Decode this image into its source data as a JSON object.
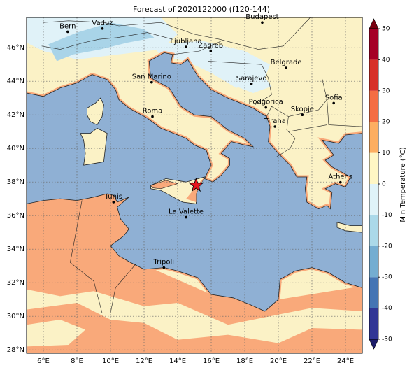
{
  "title": "Forecast of 2020122000 (f120-144)",
  "map": {
    "lonlim": [
      5,
      25
    ],
    "latlim": [
      27.8,
      47.8
    ],
    "lonticks": [
      {
        "value": 6,
        "label": "6°E"
      },
      {
        "value": 8,
        "label": "8°E"
      },
      {
        "value": 10,
        "label": "10°E"
      },
      {
        "value": 12,
        "label": "12°E"
      },
      {
        "value": 14,
        "label": "14°E"
      },
      {
        "value": 16,
        "label": "16°E"
      },
      {
        "value": 18,
        "label": "18°E"
      },
      {
        "value": 20,
        "label": "20°E"
      },
      {
        "value": 22,
        "label": "22°E"
      },
      {
        "value": 24,
        "label": "24°E"
      }
    ],
    "latticks": [
      {
        "value": 28,
        "label": "28°N"
      },
      {
        "value": 30,
        "label": "30°N"
      },
      {
        "value": 32,
        "label": "32°N"
      },
      {
        "value": 34,
        "label": "34°N"
      },
      {
        "value": 36,
        "label": "36°N"
      },
      {
        "value": 38,
        "label": "38°N"
      },
      {
        "value": 40,
        "label": "40°N"
      },
      {
        "value": 42,
        "label": "42°N"
      },
      {
        "value": 44,
        "label": "44°N"
      },
      {
        "value": 46,
        "label": "46°N"
      }
    ],
    "grid": true
  },
  "cities": [
    "Bern",
    "Vaduz",
    "Budapest",
    "Ljubljana",
    "Zagreb",
    "Belgrade",
    "San Marino",
    "Sarajevo",
    "Sofia",
    "Podgorica",
    "Skopje",
    "Roma",
    "Tirana",
    "Athens",
    "Tunis",
    "La Valette",
    "Tripoli"
  ],
  "colorbar": {
    "label": "Min Temperature (°C)",
    "lim": [
      -50,
      50
    ],
    "ticks": [
      -50,
      -40,
      -30,
      -20,
      -10,
      0,
      10,
      20,
      30,
      40,
      50
    ],
    "colors": [
      "#313695",
      "#4575b4",
      "#74add1",
      "#abd9e9",
      "#e0f3f8",
      "#fff6c4",
      "#fdae61",
      "#f46d43",
      "#d73027",
      "#a50026"
    ]
  }
}
